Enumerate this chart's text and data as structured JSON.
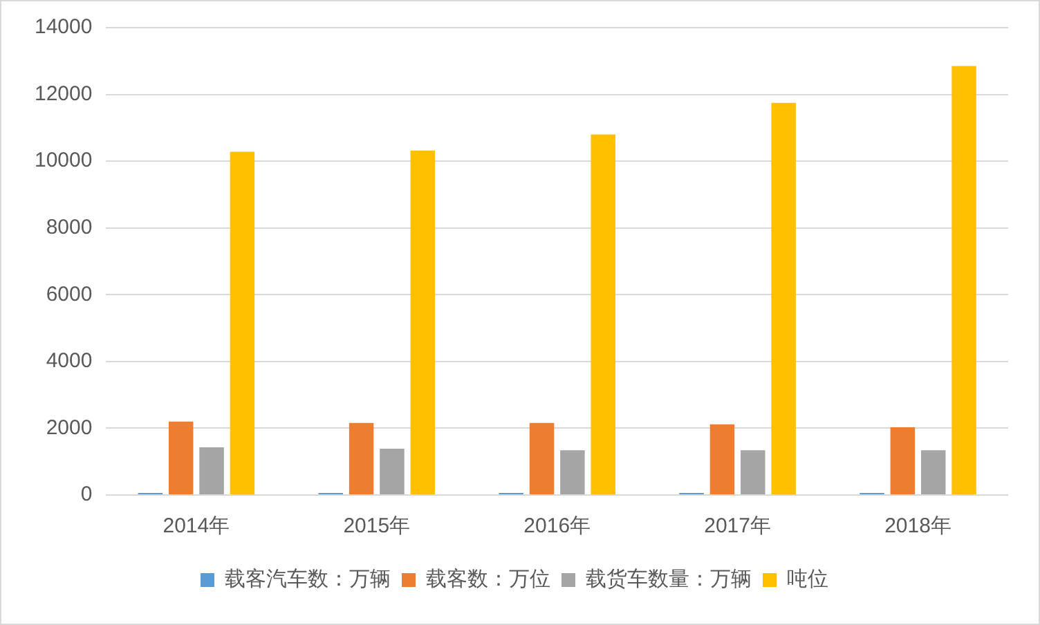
{
  "chart_data": {
    "type": "bar",
    "categories": [
      "2014年",
      "2015年",
      "2016年",
      "2017年",
      "2018年"
    ],
    "series": [
      {
        "name": "载客汽车数：万辆",
        "color": "#5b9bd5",
        "values": [
          60,
          60,
          60,
          60,
          60
        ]
      },
      {
        "name": "载客数：万位",
        "color": "#ed7d31",
        "values": [
          2200,
          2160,
          2160,
          2120,
          2030
        ]
      },
      {
        "name": "载货车数量：万辆",
        "color": "#a5a5a5",
        "values": [
          1430,
          1390,
          1340,
          1340,
          1340
        ]
      },
      {
        "name": "吨位",
        "color": "#ffc000",
        "values": [
          10280,
          10320,
          10800,
          11750,
          12850
        ]
      }
    ],
    "ylim": [
      0,
      14000
    ],
    "yticks": [
      0,
      2000,
      4000,
      6000,
      8000,
      10000,
      12000,
      14000
    ],
    "grid": "y",
    "legend": "bottom"
  }
}
